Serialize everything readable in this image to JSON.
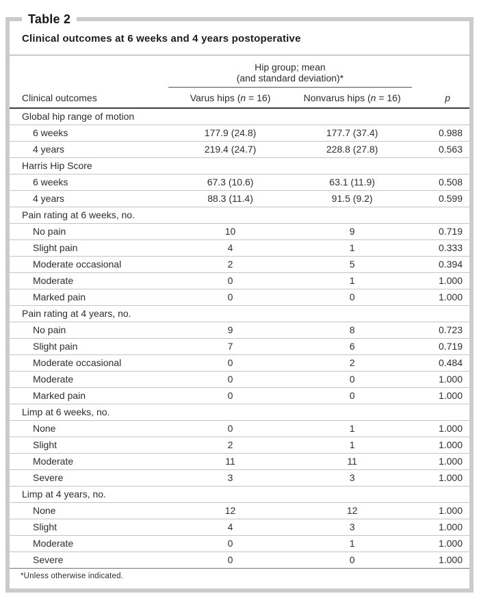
{
  "table_label": "Table 2",
  "title": "Clinical outcomes at 6 weeks and 4 years postoperative",
  "header": {
    "spanner_line1": "Hip group; mean",
    "spanner_line2": "(and standard deviation)*",
    "col_outcomes": "Clinical outcomes",
    "varus": {
      "pre": "Varus hips (",
      "n": "n",
      "post": " = 16)"
    },
    "nonvarus": {
      "pre": "Nonvarus hips (",
      "n": "n",
      "post": " = 16)"
    },
    "p": "p"
  },
  "rows": [
    {
      "type": "section",
      "label": "Global hip range of motion"
    },
    {
      "type": "item",
      "label": "6 weeks",
      "varus": "177.9 (24.8)",
      "nonvarus": "177.7 (37.4)",
      "p": "0.988"
    },
    {
      "type": "item",
      "label": "4 years",
      "varus": "219.4 (24.7)",
      "nonvarus": "228.8 (27.8)",
      "p": "0.563"
    },
    {
      "type": "section",
      "label": "Harris Hip Score"
    },
    {
      "type": "item",
      "label": "6 weeks",
      "varus": "67.3 (10.6)",
      "nonvarus": "63.1 (11.9)",
      "p": "0.508"
    },
    {
      "type": "item",
      "label": "4 years",
      "varus": "88.3 (11.4)",
      "nonvarus": "91.5 (9.2)",
      "p": "0.599"
    },
    {
      "type": "section",
      "label": "Pain rating at 6 weeks, no."
    },
    {
      "type": "item",
      "label": "No pain",
      "varus": "10",
      "nonvarus": "9",
      "p": "0.719"
    },
    {
      "type": "item",
      "label": "Slight pain",
      "varus": "4",
      "nonvarus": "1",
      "p": "0.333"
    },
    {
      "type": "item",
      "label": "Moderate occasional",
      "varus": "2",
      "nonvarus": "5",
      "p": "0.394"
    },
    {
      "type": "item",
      "label": "Moderate",
      "varus": "0",
      "nonvarus": "1",
      "p": "1.000"
    },
    {
      "type": "item",
      "label": "Marked pain",
      "varus": "0",
      "nonvarus": "0",
      "p": "1.000"
    },
    {
      "type": "section",
      "label": "Pain rating at 4 years, no."
    },
    {
      "type": "item",
      "label": "No pain",
      "varus": "9",
      "nonvarus": "8",
      "p": "0.723"
    },
    {
      "type": "item",
      "label": "Slight pain",
      "varus": "7",
      "nonvarus": "6",
      "p": "0.719"
    },
    {
      "type": "item",
      "label": "Moderate occasional",
      "varus": "0",
      "nonvarus": "2",
      "p": "0.484"
    },
    {
      "type": "item",
      "label": "Moderate",
      "varus": "0",
      "nonvarus": "0",
      "p": "1.000"
    },
    {
      "type": "item",
      "label": "Marked pain",
      "varus": "0",
      "nonvarus": "0",
      "p": "1.000"
    },
    {
      "type": "section",
      "label": "Limp at 6 weeks, no."
    },
    {
      "type": "item",
      "label": "None",
      "varus": "0",
      "nonvarus": "1",
      "p": "1.000"
    },
    {
      "type": "item",
      "label": "Slight",
      "varus": "2",
      "nonvarus": "1",
      "p": "1.000"
    },
    {
      "type": "item",
      "label": "Moderate",
      "varus": "11",
      "nonvarus": "11",
      "p": "1.000"
    },
    {
      "type": "item",
      "label": "Severe",
      "varus": "3",
      "nonvarus": "3",
      "p": "1.000"
    },
    {
      "type": "section",
      "label": "Limp at 4 years, no."
    },
    {
      "type": "item",
      "label": "None",
      "varus": "12",
      "nonvarus": "12",
      "p": "1.000"
    },
    {
      "type": "item",
      "label": "Slight",
      "varus": "4",
      "nonvarus": "3",
      "p": "1.000"
    },
    {
      "type": "item",
      "label": "Moderate",
      "varus": "0",
      "nonvarus": "1",
      "p": "1.000"
    },
    {
      "type": "item",
      "label": "Severe",
      "varus": "0",
      "nonvarus": "0",
      "p": "1.000"
    }
  ],
  "footnote": "*Unless otherwise indicated.",
  "colors": {
    "frame_border": "#c9cbcd",
    "heavy_rule": "#3b3b3d",
    "row_rule": "#c2c4c6",
    "title_rule": "#97999b",
    "footnote_rule": "#6f7173",
    "text": "#2d2d2f"
  }
}
